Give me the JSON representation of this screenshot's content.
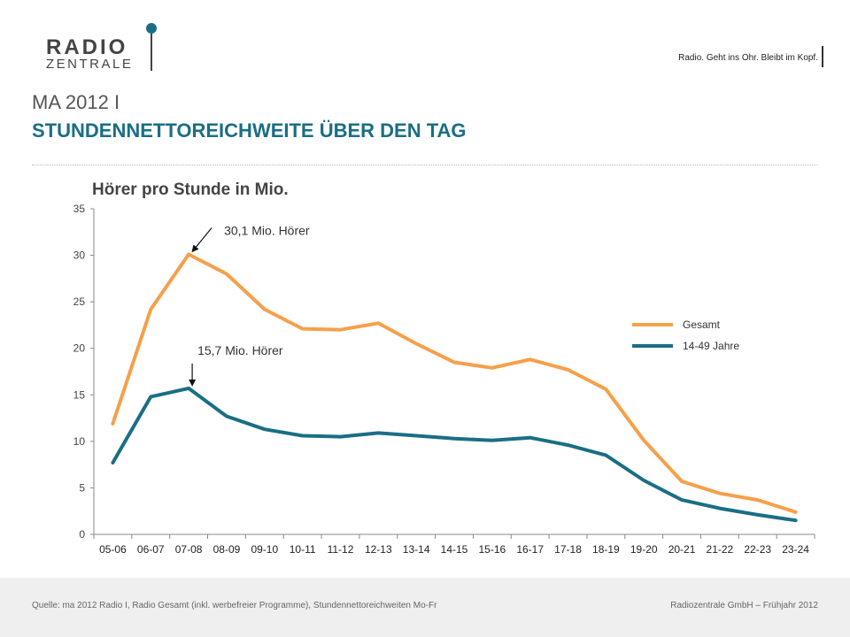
{
  "header": {
    "logo_line1": "RADIO",
    "logo_line2": "ZENTRALE",
    "tagline": "Radio. Geht ins Ohr. Bleibt im Kopf.",
    "title_line1": "MA 2012 I",
    "title_line2": "STUNDENNETTOREICHWEITE ÜBER DEN TAG"
  },
  "footer": {
    "source": "Quelle: ma 2012 Radio I, Radio Gesamt (inkl. werbefreier Programme), Stundennettoreichweiten Mo-Fr",
    "copyright": "Radiozentrale GmbH – Frühjahr 2012"
  },
  "colors": {
    "accent": "#1a6e85",
    "gesamt": "#f5a04a",
    "jung": "#1a6e85"
  },
  "chart_data": {
    "type": "line",
    "title": "Hörer pro Stunde in Mio.",
    "categories": [
      "05-06",
      "06-07",
      "07-08",
      "08-09",
      "09-10",
      "10-11",
      "11-12",
      "12-13",
      "13-14",
      "14-15",
      "15-16",
      "16-17",
      "17-18",
      "18-19",
      "19-20",
      "20-21",
      "21-22",
      "22-23",
      "23-24"
    ],
    "ylim": [
      0,
      35
    ],
    "yticks": [
      0,
      5,
      10,
      15,
      20,
      25,
      30,
      35
    ],
    "legend_position": "right",
    "series": [
      {
        "name": "Gesamt",
        "color": "#f5a04a",
        "values": [
          11.9,
          24.2,
          30.1,
          28.0,
          24.2,
          22.1,
          22.0,
          22.7,
          20.5,
          18.5,
          17.9,
          18.8,
          17.7,
          15.6,
          10.1,
          5.7,
          4.4,
          3.7,
          2.4
        ]
      },
      {
        "name": "14-49 Jahre",
        "color": "#1a6e85",
        "values": [
          7.7,
          14.8,
          15.7,
          12.7,
          11.3,
          10.6,
          10.5,
          10.9,
          10.6,
          10.3,
          10.1,
          10.4,
          9.6,
          8.5,
          5.8,
          3.7,
          2.8,
          2.1,
          1.5
        ]
      }
    ],
    "annotations": [
      {
        "text": "30,1 Mio. Hörer",
        "series": 0,
        "index": 2
      },
      {
        "text": "15,7  Mio. Hörer",
        "series": 1,
        "index": 2
      }
    ]
  }
}
